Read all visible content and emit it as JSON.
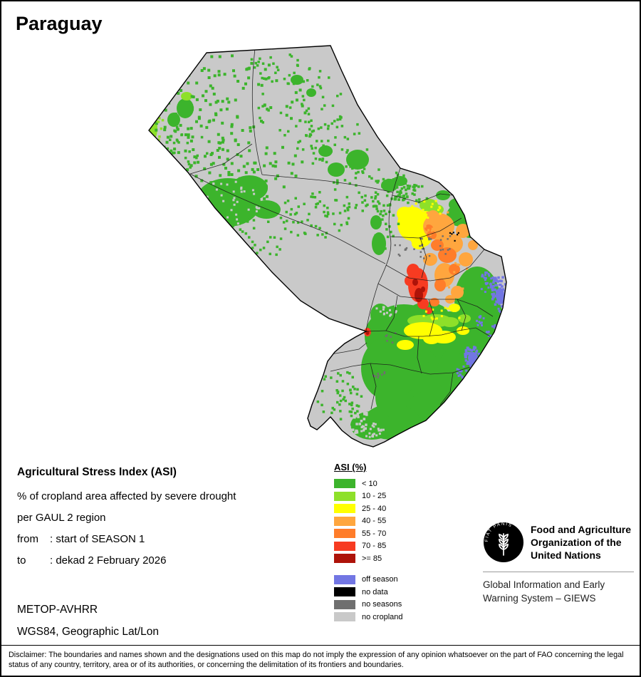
{
  "title": "Paraguay",
  "info": {
    "heading": "Agricultural Stress Index (ASI)",
    "description_line1": "% of cropland area affected by severe drought",
    "description_line2": "per GAUL 2 region",
    "from_label": "from",
    "from_value": ": start of SEASON 1",
    "to_label": "to",
    "to_value": ": dekad 2 February 2026",
    "sensor": "METOP-AVHRR",
    "projection": "WGS84, Geographic Lat/Lon"
  },
  "legend": {
    "title": "ASI (%)",
    "classes": [
      {
        "label": "< 10",
        "color": "#3cb42c"
      },
      {
        "label": "10 - 25",
        "color": "#8ee029"
      },
      {
        "label": "25 - 40",
        "color": "#ffff00"
      },
      {
        "label": "40 - 55",
        "color": "#ffa63e"
      },
      {
        "label": "55 - 70",
        "color": "#ff7d2a"
      },
      {
        "label": "70 - 85",
        "color": "#f73b21"
      },
      {
        "label": ">= 85",
        "color": "#ae1309"
      }
    ],
    "extra": [
      {
        "label": "off season",
        "color": "#7276e3"
      },
      {
        "label": "no data",
        "color": "#000000"
      },
      {
        "label": "no seasons",
        "color": "#6f6f6f"
      },
      {
        "label": "no cropland",
        "color": "#c9c9c9"
      }
    ]
  },
  "fao": {
    "org_line1": "Food and Agriculture",
    "org_line2": "Organization of the",
    "org_line3": "United Nations",
    "giews_line1": "Global Information and Early",
    "giews_line2": "Warning System – GIEWS",
    "logo_motto": "FIAT PANIS"
  },
  "disclaimer": "Disclaimer: The boundaries and names shown and the designations used on this map do not imply the expression of any opinion whatsoever on the part of FAO concerning the legal status of any country, territory, area or of its authorities, or concerning the delimitation of its frontiers and boundaries."
}
